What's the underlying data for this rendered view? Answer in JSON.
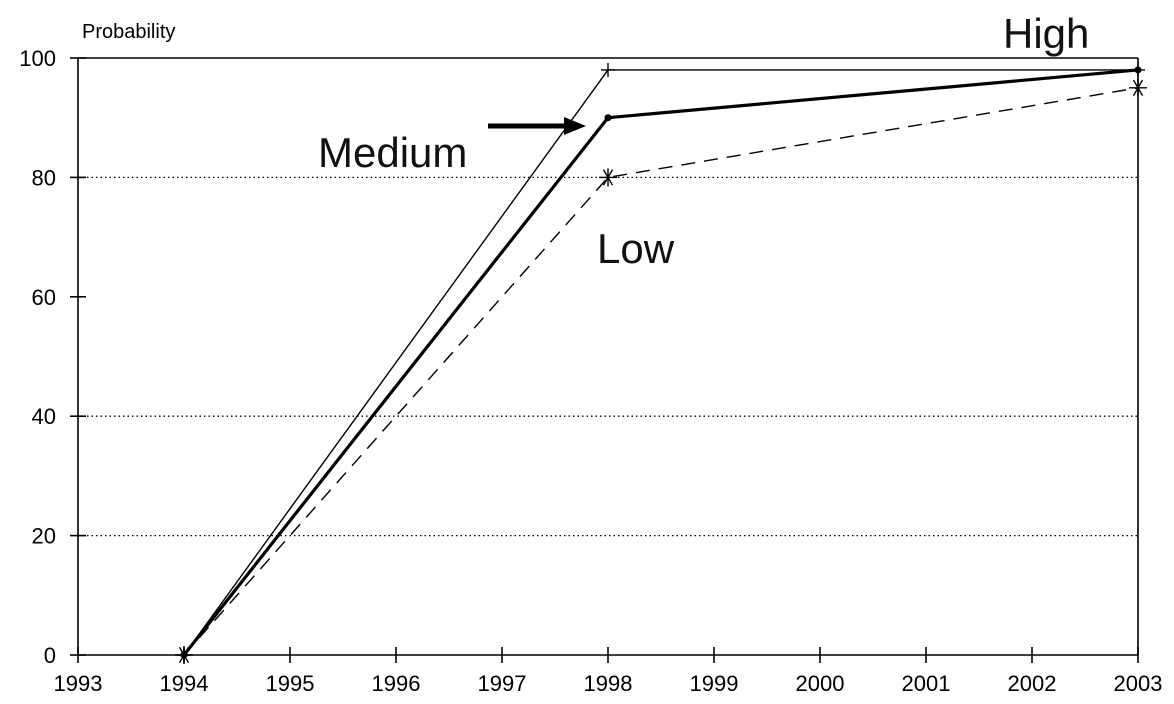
{
  "chart_data": {
    "type": "line",
    "title": "",
    "ylabel": "Probability",
    "xlabel": "",
    "x_ticks": [
      "1993",
      "1994",
      "1995",
      "1996",
      "1997",
      "1998",
      "1999",
      "2000",
      "2001",
      "2002",
      "2003"
    ],
    "y_ticks": [
      "0",
      "20",
      "40",
      "60",
      "80",
      "100"
    ],
    "xlim": [
      1993,
      2003
    ],
    "ylim": [
      0,
      100
    ],
    "grid": "horizontal dotted at 20, 40, 80",
    "series": [
      {
        "name": "High",
        "x": [
          1994,
          1998,
          2003
        ],
        "y": [
          0,
          98,
          98
        ],
        "line": "thin solid",
        "marker": "plus",
        "color": "#000000"
      },
      {
        "name": "Medium",
        "x": [
          1994,
          1998,
          2003
        ],
        "y": [
          0,
          90,
          98
        ],
        "line": "thick solid",
        "marker": "dot",
        "color": "#000000"
      },
      {
        "name": "Low",
        "x": [
          1994,
          1998,
          2003
        ],
        "y": [
          0,
          80,
          95
        ],
        "line": "dashed",
        "marker": "asterisk",
        "color": "#000000"
      }
    ],
    "annotations": [
      {
        "text": "High",
        "points_to": "High"
      },
      {
        "text": "Medium",
        "points_to": "Medium",
        "arrow": true
      },
      {
        "text": "Low",
        "points_to": "Low"
      }
    ]
  }
}
